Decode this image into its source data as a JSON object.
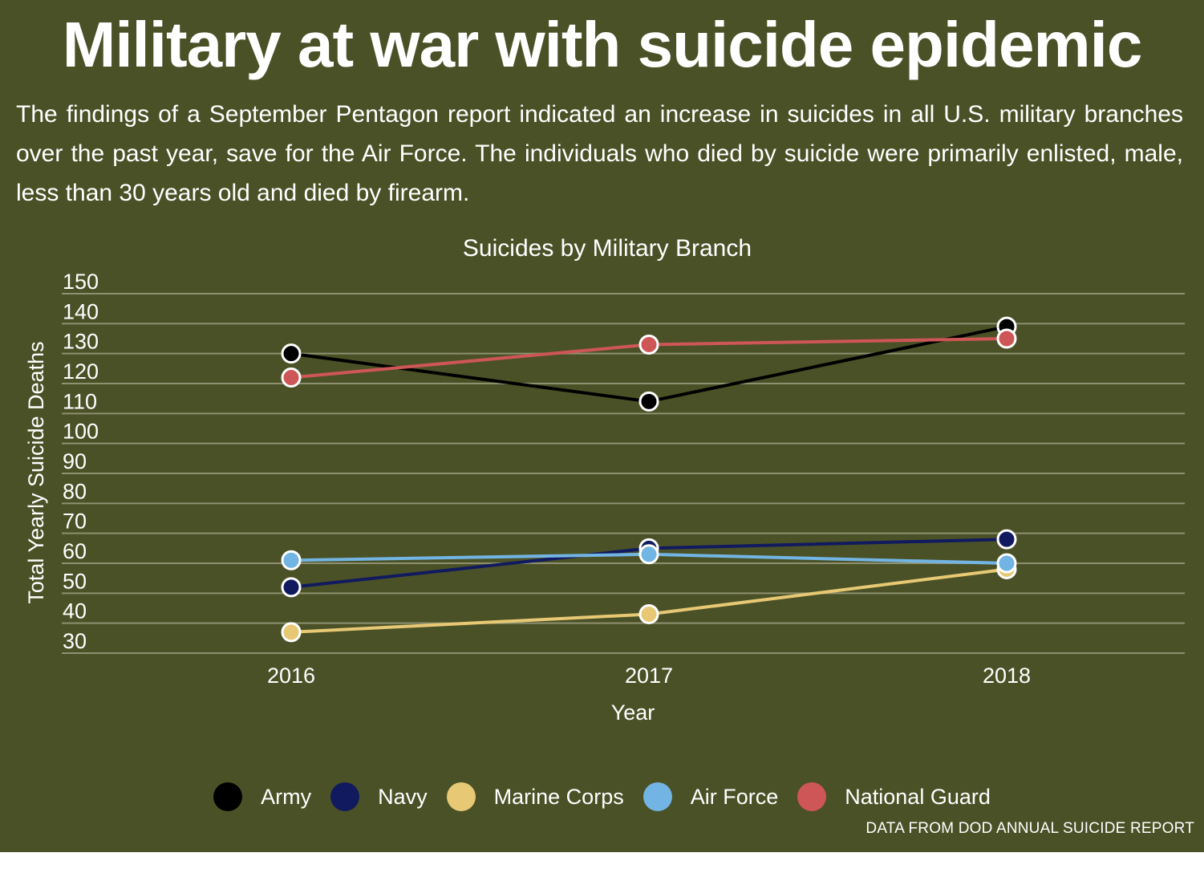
{
  "headline": "Military at war with suicide epidemic",
  "intro": "The findings of a September Pentagon report indicated an increase in suicides in all U.S. military branches over the past year, save for the Air Force. The individuals who died by suicide were primarily enlisted, male, less than 30 years old and died by firearm.",
  "source": "DATA FROM DOD ANNUAL SUICIDE REPORT",
  "chart_data": {
    "type": "line",
    "title": "Suicides by Military Branch",
    "xlabel": "Year",
    "ylabel": "Total Yearly Suicide Deaths",
    "x": [
      "2016",
      "2017",
      "2018"
    ],
    "ylim": [
      30,
      150
    ],
    "yticks": [
      30,
      40,
      50,
      60,
      70,
      80,
      90,
      100,
      110,
      120,
      130,
      140,
      150
    ],
    "grid": true,
    "legend_position": "bottom",
    "series": [
      {
        "name": "Army",
        "color": "#000000",
        "values": [
          130,
          114,
          139
        ]
      },
      {
        "name": "Navy",
        "color": "#111a5e",
        "values": [
          52,
          65,
          68
        ]
      },
      {
        "name": "Marine Corps",
        "color": "#e7c874",
        "values": [
          37,
          43,
          58
        ]
      },
      {
        "name": "Air Force",
        "color": "#72b4e3",
        "values": [
          61,
          63,
          60
        ]
      },
      {
        "name": "National Guard",
        "color": "#cf5656",
        "values": [
          122,
          133,
          135
        ]
      }
    ]
  }
}
